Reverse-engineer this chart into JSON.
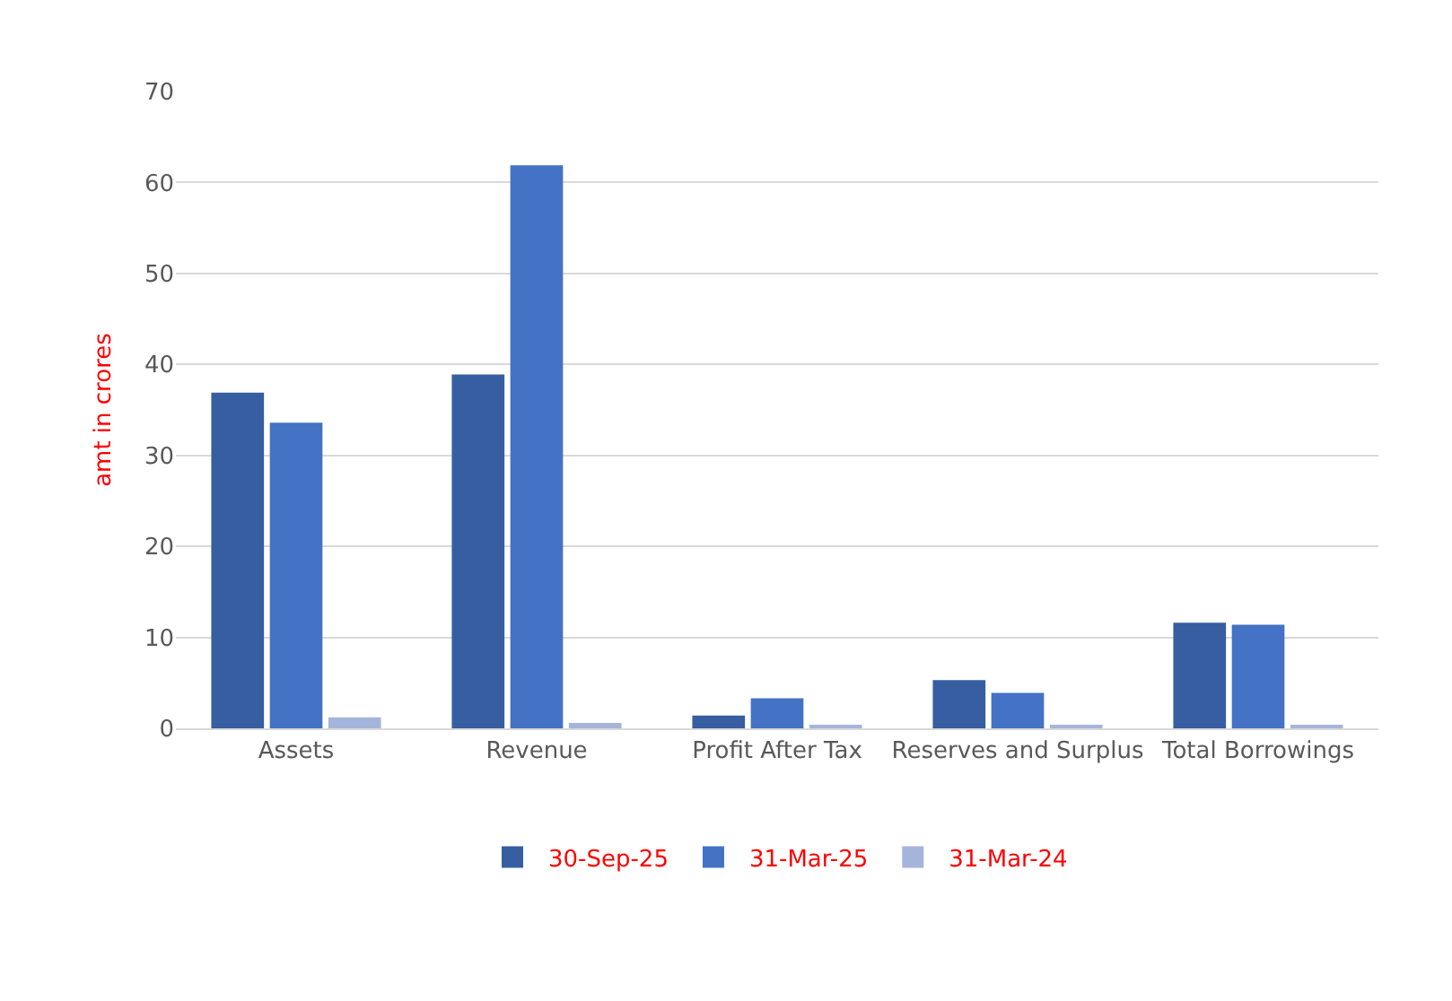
{
  "chart_data": {
    "type": "bar",
    "ylabel": "amt in crores",
    "categories": [
      "Assets",
      "Revenue",
      "Profit After Tax",
      "Reserves and Surplus",
      "Total Borrowings"
    ],
    "series": [
      {
        "name": "30-Sep-25",
        "color": "#365ea0",
        "values": [
          36.9,
          38.9,
          1.4,
          5.3,
          11.6
        ]
      },
      {
        "name": "31-Mar-25",
        "color": "#4472c4",
        "values": [
          33.6,
          61.9,
          3.3,
          3.9,
          11.4
        ]
      },
      {
        "name": "31-Mar-24",
        "color": "#a5b4da",
        "values": [
          1.2,
          0.6,
          0.2,
          0.2,
          0.4
        ]
      }
    ],
    "ylim": [
      0,
      70
    ],
    "yticks": [
      0,
      10,
      20,
      30,
      40,
      50,
      60,
      70
    ],
    "grid": "y",
    "legend": "bottom"
  }
}
